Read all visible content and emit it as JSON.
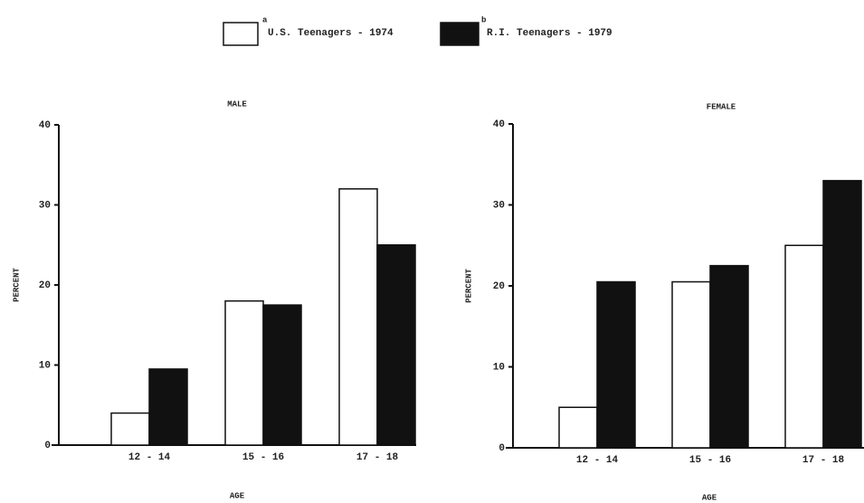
{
  "legend": [
    {
      "name": "U.S. Teenagers - 1974",
      "superscript": "a",
      "color": "#ffffff"
    },
    {
      "name": "R.I. Teenagers - 1979",
      "superscript": "b",
      "color": "#111111"
    }
  ],
  "chart_data": [
    {
      "type": "bar",
      "title": "MALE",
      "xlabel": "AGE",
      "ylabel": "PERCENT",
      "categories": [
        "12 - 14",
        "15 - 16",
        "17 - 18"
      ],
      "series": [
        {
          "color": "#ffffff",
          "values": [
            4,
            18,
            32
          ]
        },
        {
          "color": "#111111",
          "values": [
            9.5,
            17.5,
            25
          ]
        }
      ],
      "ylim": [
        0,
        40
      ],
      "yticks": [
        0,
        10,
        20,
        30,
        40
      ]
    },
    {
      "type": "bar",
      "title": "FEMALE",
      "xlabel": "AGE",
      "ylabel": "PERCENT",
      "categories": [
        "12 - 14",
        "15 - 16",
        "17 - 18"
      ],
      "series": [
        {
          "color": "#ffffff",
          "values": [
            5,
            20.5,
            25
          ]
        },
        {
          "color": "#111111",
          "values": [
            20.5,
            22.5,
            33
          ]
        }
      ],
      "ylim": [
        0,
        40
      ],
      "yticks": [
        0,
        10,
        20,
        30,
        40
      ]
    }
  ]
}
